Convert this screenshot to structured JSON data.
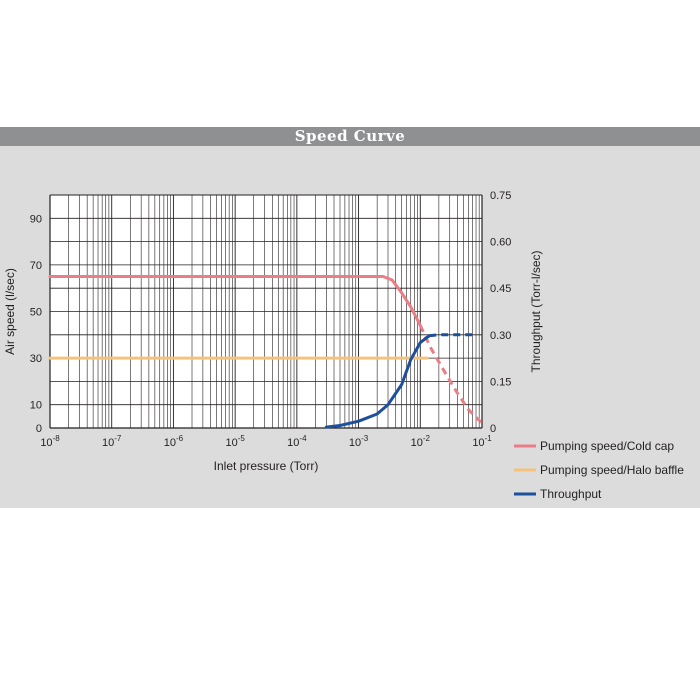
{
  "title": "Speed Curve",
  "colors": {
    "panel_bg": "#dcdcdc",
    "title_bg": "#8f9092",
    "cold_cap": "#ea7d86",
    "halo_baffle": "#f6c27a",
    "throughput": "#1d4f9c",
    "grid": "#231f20"
  },
  "chart_data": {
    "type": "line",
    "title": "Speed Curve",
    "xlabel": "Inlet pressure (Torr)",
    "ylabel": "Air speed (l/sec)",
    "y2label": "Throughput (Torr-l/sec)",
    "x_scale": "log",
    "x_range": [
      1e-08,
      0.1
    ],
    "x_ticks": [
      {
        "value": 1e-08,
        "base": "10",
        "exp": "-8"
      },
      {
        "value": 1e-07,
        "base": "10",
        "exp": "-7"
      },
      {
        "value": 1e-06,
        "base": "10",
        "exp": "-6"
      },
      {
        "value": 1e-05,
        "base": "10",
        "exp": "-5"
      },
      {
        "value": 0.0001,
        "base": "10",
        "exp": "-4"
      },
      {
        "value": 0.001,
        "base": "10",
        "exp": "-3"
      },
      {
        "value": 0.01,
        "base": "10",
        "exp": "-2"
      },
      {
        "value": 0.1,
        "base": "10",
        "exp": "-1"
      }
    ],
    "y_range": [
      0,
      100
    ],
    "y_ticks": [
      0,
      10,
      30,
      50,
      70,
      90
    ],
    "y2_range": [
      0,
      0.75
    ],
    "y2_ticks": [
      "0",
      "0.15",
      "0.30",
      "0.45",
      "0.60",
      "0.75"
    ],
    "y2_tick_values": [
      0,
      0.15,
      0.3,
      0.45,
      0.6,
      0.75
    ],
    "grid": true,
    "legend_position": "bottom-right",
    "series": [
      {
        "name": "Pumping speed/Cold cap",
        "axis": "left",
        "color": "#ea7d86",
        "solid": [
          [
            1e-08,
            65
          ],
          [
            0.0025,
            65
          ],
          [
            0.0035,
            63.5
          ],
          [
            0.005,
            58
          ],
          [
            0.007,
            52
          ],
          [
            0.01,
            44
          ]
        ],
        "dashed": [
          [
            0.01,
            44
          ],
          [
            0.015,
            34
          ],
          [
            0.025,
            24
          ],
          [
            0.04,
            15
          ],
          [
            0.06,
            8
          ],
          [
            0.1,
            2
          ]
        ]
      },
      {
        "name": "Pumping speed/Halo baffle",
        "axis": "left",
        "color": "#f6c27a",
        "solid": [
          [
            1e-08,
            30
          ],
          [
            0.013,
            30
          ]
        ],
        "dashed": []
      },
      {
        "name": "Throughput",
        "axis": "right",
        "color": "#1d4f9c",
        "solid": [
          [
            0.0003,
            0.003
          ],
          [
            0.0005,
            0.008
          ],
          [
            0.001,
            0.022
          ],
          [
            0.002,
            0.045
          ],
          [
            0.003,
            0.075
          ],
          [
            0.005,
            0.14
          ],
          [
            0.007,
            0.22
          ],
          [
            0.01,
            0.275
          ],
          [
            0.014,
            0.297
          ]
        ],
        "dashed": [
          [
            0.014,
            0.297
          ],
          [
            0.02,
            0.3
          ],
          [
            0.05,
            0.3
          ],
          [
            0.08,
            0.3
          ]
        ]
      }
    ]
  }
}
